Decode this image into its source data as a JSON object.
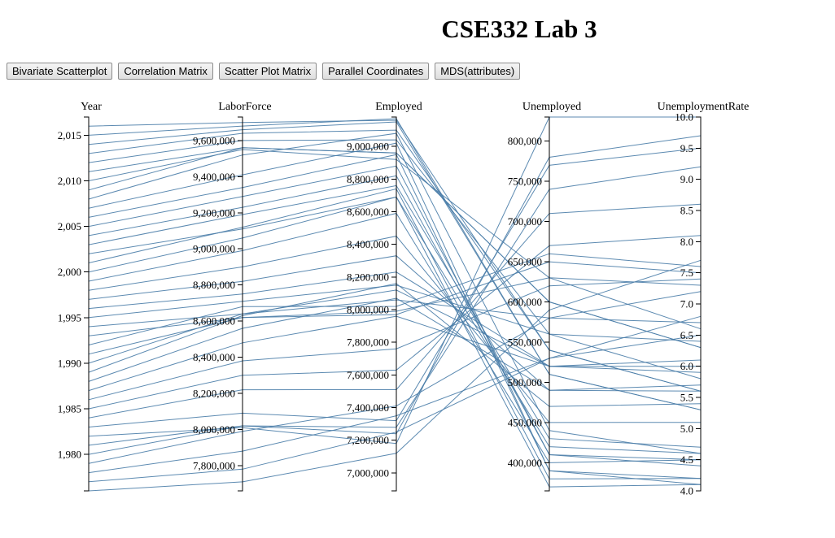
{
  "page": {
    "title": "CSE332 Lab 3"
  },
  "toolbar": {
    "buttons": [
      {
        "label": "Bivariate Scatterplot"
      },
      {
        "label": "Correlation Matrix"
      },
      {
        "label": "Scatter Plot Matrix"
      },
      {
        "label": "Parallel Coordinates"
      },
      {
        "label": "MDS(attributes)"
      }
    ]
  },
  "colors": {
    "line": "#4a7da8",
    "axis": "#000000"
  },
  "chart_data": {
    "type": "parallel_coordinates",
    "dimensions": [
      {
        "name": "Year",
        "domain": [
          1976,
          2017
        ],
        "ticks": [
          1980,
          1985,
          1990,
          1995,
          2000,
          2005,
          2010,
          2015
        ],
        "tick_labels": [
          "1,980",
          "1,985",
          "1,990",
          "1,995",
          "2,000",
          "2,005",
          "2,010",
          "2,015"
        ]
      },
      {
        "name": "LaborForce",
        "domain": [
          7660000,
          9730000
        ],
        "ticks": [
          7800000,
          8000000,
          8200000,
          8400000,
          8600000,
          8800000,
          9000000,
          9200000,
          9400000,
          9600000
        ],
        "tick_labels": [
          "7,800,000",
          "8,000,000",
          "8,200,000",
          "8,400,000",
          "8,600,000",
          "8,800,000",
          "9,000,000",
          "9,200,000",
          "9,400,000",
          "9,600,000"
        ]
      },
      {
        "name": "Employed",
        "domain": [
          6890000,
          9180000
        ],
        "ticks": [
          7000000,
          7200000,
          7400000,
          7600000,
          7800000,
          8000000,
          8200000,
          8400000,
          8600000,
          8800000,
          9000000
        ],
        "tick_labels": [
          "7,000,000",
          "7,200,000",
          "7,400,000",
          "7,600,000",
          "7,800,000",
          "8,000,000",
          "8,200,000",
          "8,400,000",
          "8,600,000",
          "8,800,000",
          "9,000,000"
        ]
      },
      {
        "name": "Unemployed",
        "domain": [
          365000,
          830000
        ],
        "ticks": [
          400000,
          450000,
          500000,
          550000,
          600000,
          650000,
          700000,
          750000,
          800000
        ],
        "tick_labels": [
          "400,000",
          "450,000",
          "500,000",
          "550,000",
          "600,000",
          "650,000",
          "700,000",
          "750,000",
          "800,000"
        ]
      },
      {
        "name": "UnemploymentRate",
        "domain": [
          4.0,
          10.0
        ],
        "ticks": [
          4.0,
          4.5,
          5.0,
          5.5,
          6.0,
          6.5,
          7.0,
          7.5,
          8.0,
          8.5,
          9.0,
          9.5,
          10.0
        ],
        "tick_labels": [
          "4.0",
          "4.5",
          "5.0",
          "5.5",
          "6.0",
          "6.5",
          "7.0",
          "7.5",
          "8.0",
          "8.5",
          "9.0",
          "9.5",
          "10.0"
        ]
      }
    ],
    "records": [
      [
        1976,
        7710000,
        7120000,
        590000,
        7.7
      ],
      [
        1977,
        7780000,
        7250000,
        530000,
        6.8
      ],
      [
        1978,
        7880000,
        7350000,
        530000,
        6.5
      ],
      [
        1979,
        7990000,
        7410000,
        580000,
        7.2
      ],
      [
        1980,
        8020000,
        7280000,
        740000,
        9.2
      ],
      [
        1981,
        8020000,
        7240000,
        780000,
        9.7
      ],
      [
        1982,
        8010000,
        7180000,
        830000,
        10.0
      ],
      [
        1983,
        8090000,
        7320000,
        770000,
        9.5
      ],
      [
        1984,
        8220000,
        7510000,
        710000,
        8.6
      ],
      [
        1985,
        8300000,
        7630000,
        670000,
        8.1
      ],
      [
        1986,
        8380000,
        7760000,
        620000,
        7.4
      ],
      [
        1987,
        8480000,
        7960000,
        520000,
        6.1
      ],
      [
        1988,
        8560000,
        8070000,
        490000,
        5.7
      ],
      [
        1989,
        8630000,
        8160000,
        470000,
        5.4
      ],
      [
        1990,
        8640000,
        8120000,
        520000,
        6.0
      ],
      [
        1991,
        8620000,
        7990000,
        630000,
        7.3
      ],
      [
        1992,
        8680000,
        8020000,
        660000,
        7.6
      ],
      [
        1993,
        8620000,
        7970000,
        650000,
        7.5
      ],
      [
        1994,
        8640000,
        8060000,
        580000,
        6.7
      ],
      [
        1995,
        8710000,
        8150000,
        560000,
        6.4
      ],
      [
        1996,
        8750000,
        8230000,
        520000,
        5.9
      ],
      [
        1997,
        8820000,
        8330000,
        490000,
        5.6
      ],
      [
        1998,
        8900000,
        8450000,
        450000,
        5.1
      ],
      [
        1999,
        8990000,
        8590000,
        400000,
        4.5
      ],
      [
        2000,
        9060000,
        8690000,
        370000,
        4.1
      ],
      [
        2001,
        9120000,
        8740000,
        380000,
        4.2
      ],
      [
        2002,
        9110000,
        8690000,
        420000,
        4.6
      ],
      [
        2003,
        9190000,
        8760000,
        430000,
        4.7
      ],
      [
        2004,
        9230000,
        8820000,
        410000,
        4.5
      ],
      [
        2005,
        9290000,
        8880000,
        410000,
        4.4
      ],
      [
        2006,
        9340000,
        8950000,
        390000,
        4.2
      ],
      [
        2007,
        9410000,
        9020000,
        390000,
        4.1
      ],
      [
        2008,
        9520000,
        9080000,
        440000,
        4.6
      ],
      [
        2009,
        9560000,
        8960000,
        600000,
        6.3
      ],
      [
        2010,
        9550000,
        8920000,
        630000,
        6.6
      ],
      [
        2011,
        9560000,
        8960000,
        600000,
        6.3
      ],
      [
        2012,
        9600000,
        9040000,
        560000,
        5.8
      ],
      [
        2013,
        9640000,
        9100000,
        540000,
        5.6
      ],
      [
        2014,
        9660000,
        9150000,
        510000,
        5.3
      ],
      [
        2015,
        9680000,
        9170000,
        510000,
        5.3
      ],
      [
        2016,
        9700000,
        9160000,
        540000,
        5.6
      ]
    ]
  }
}
